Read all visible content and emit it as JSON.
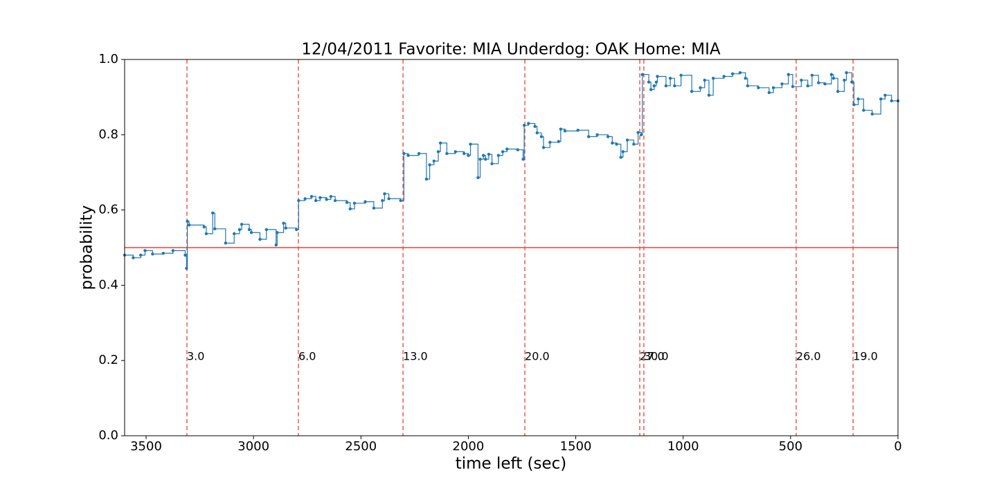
{
  "chart_data": {
    "type": "line",
    "title": "12/04/2011 Favorite: MIA Underdog: OAK Home: MIA",
    "x_label": "time left (sec)",
    "y_label": "probability",
    "xlim": [
      3600,
      0
    ],
    "ylim": [
      0,
      1
    ],
    "xticks": [
      3500,
      3000,
      2500,
      2000,
      1500,
      1000,
      500,
      0
    ],
    "yticks": [
      {
        "value": 0,
        "label": "0.0"
      },
      {
        "value": 0.2,
        "label": "0.2"
      },
      {
        "value": 0.4,
        "label": "0.4"
      },
      {
        "value": 0.6,
        "label": "0.6"
      },
      {
        "value": 0.8,
        "label": "0.8"
      },
      {
        "value": 1,
        "label": "1.0"
      }
    ],
    "threshold": 0.5,
    "threshold_color": "#e8413a",
    "event_color": "#ec5a4e",
    "events": [
      {
        "x": 3310,
        "label": "3.0"
      },
      {
        "x": 2791,
        "label": "6.0"
      },
      {
        "x": 2304,
        "label": "13.0"
      },
      {
        "x": 1737,
        "label": "20.0"
      },
      {
        "x": 1202,
        "label": "27.0"
      },
      {
        "x": 1183,
        "label": "30.0"
      },
      {
        "x": 474,
        "label": "26.0"
      },
      {
        "x": 209,
        "label": "19.0"
      }
    ],
    "series": [
      {
        "color": "#1f77b4",
        "x": [
          3600,
          3560,
          3525,
          3505,
          3470,
          3420,
          3375,
          3318,
          3312,
          3308,
          3300,
          3230,
          3220,
          3190,
          3180,
          3130,
          3090,
          3065,
          3055,
          3020,
          3010,
          2970,
          2940,
          2895,
          2890,
          2860,
          2850,
          2800,
          2790,
          2760,
          2730,
          2710,
          2690,
          2660,
          2640,
          2620,
          2565,
          2550,
          2530,
          2480,
          2440,
          2400,
          2390,
          2370,
          2315,
          2300,
          2280,
          2230,
          2195,
          2180,
          2160,
          2140,
          2130,
          2100,
          2060,
          2020,
          2000,
          1990,
          1955,
          1945,
          1930,
          1920,
          1905,
          1890,
          1860,
          1840,
          1820,
          1770,
          1745,
          1740,
          1720,
          1690,
          1680,
          1660,
          1650,
          1620,
          1580,
          1570,
          1550,
          1490,
          1440,
          1400,
          1350,
          1330,
          1310,
          1290,
          1280,
          1260,
          1230,
          1210,
          1195,
          1190,
          1160,
          1150,
          1135,
          1125,
          1120,
          1080,
          1060,
          1040,
          1010,
          960,
          920,
          900,
          880,
          860,
          810,
          770,
          735,
          710,
          700,
          650,
          600,
          580,
          540,
          510,
          490,
          450,
          420,
          400,
          370,
          340,
          310,
          300,
          280,
          250,
          240,
          215,
          205,
          185,
          160,
          120,
          80,
          60,
          30,
          0
        ],
        "values": [
          0.48,
          0.473,
          0.48,
          0.492,
          0.483,
          0.485,
          0.492,
          0.48,
          0.445,
          0.57,
          0.56,
          0.555,
          0.537,
          0.592,
          0.55,
          0.512,
          0.537,
          0.548,
          0.562,
          0.548,
          0.54,
          0.522,
          0.548,
          0.507,
          0.54,
          0.565,
          0.552,
          0.548,
          0.625,
          0.63,
          0.636,
          0.625,
          0.633,
          0.628,
          0.636,
          0.625,
          0.62,
          0.603,
          0.618,
          0.622,
          0.605,
          0.625,
          0.643,
          0.63,
          0.625,
          0.75,
          0.745,
          0.75,
          0.682,
          0.72,
          0.73,
          0.755,
          0.778,
          0.75,
          0.755,
          0.75,
          0.745,
          0.775,
          0.686,
          0.735,
          0.745,
          0.735,
          0.748,
          0.723,
          0.745,
          0.755,
          0.762,
          0.76,
          0.735,
          0.825,
          0.83,
          0.822,
          0.805,
          0.795,
          0.766,
          0.78,
          0.782,
          0.815,
          0.81,
          0.812,
          0.795,
          0.8,
          0.795,
          0.778,
          0.775,
          0.74,
          0.755,
          0.786,
          0.775,
          0.806,
          0.8,
          0.96,
          0.94,
          0.92,
          0.93,
          0.94,
          0.955,
          0.93,
          0.95,
          0.93,
          0.958,
          0.915,
          0.925,
          0.945,
          0.905,
          0.95,
          0.955,
          0.962,
          0.965,
          0.95,
          0.93,
          0.925,
          0.912,
          0.925,
          0.935,
          0.96,
          0.928,
          0.945,
          0.93,
          0.958,
          0.938,
          0.935,
          0.96,
          0.95,
          0.915,
          0.945,
          0.965,
          0.94,
          0.88,
          0.895,
          0.865,
          0.855,
          0.895,
          0.905,
          0.89,
          0.89
        ]
      }
    ]
  }
}
